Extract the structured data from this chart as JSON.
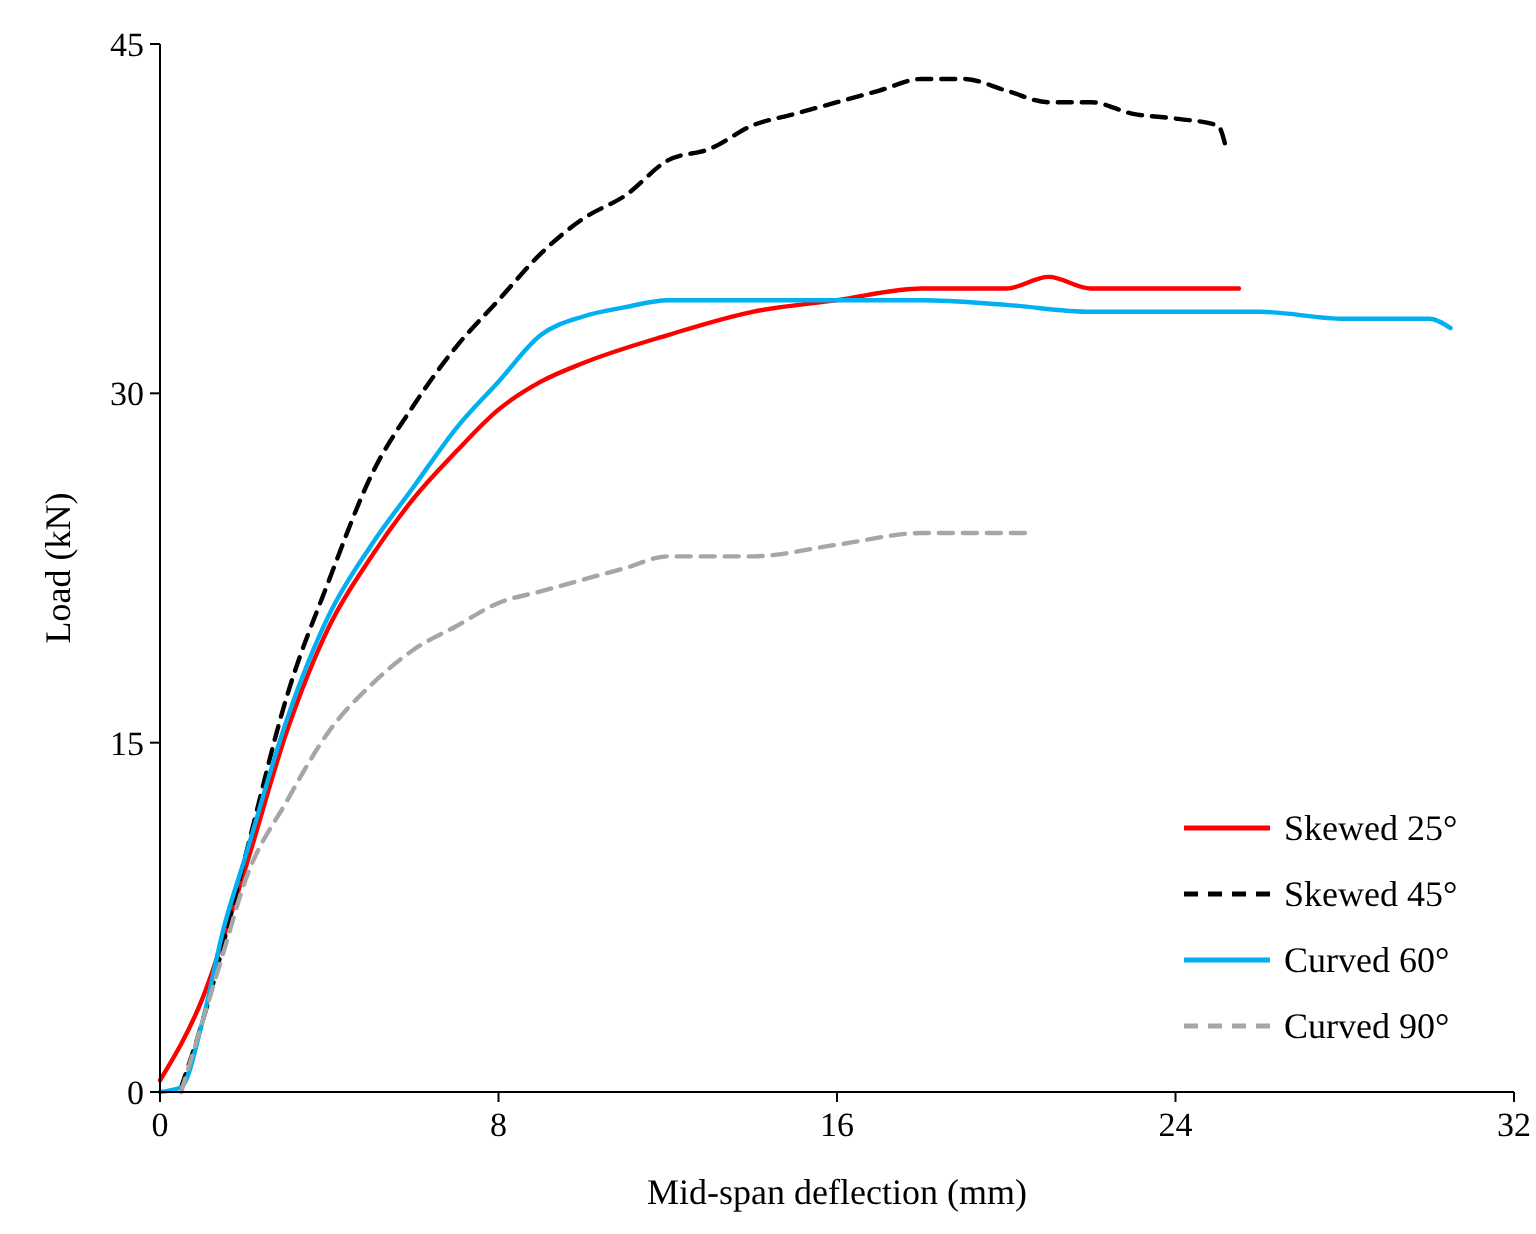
{
  "chart_data": {
    "type": "line",
    "xlabel": "Mid-span deflection (mm)",
    "ylabel": "Load (kN)",
    "xlim": [
      0,
      32
    ],
    "xticks": [
      0,
      8,
      16,
      24,
      32
    ],
    "ylim": [
      0,
      45
    ],
    "yticks": [
      0,
      15,
      30,
      45
    ],
    "grid": false,
    "legend": "bottom right",
    "series": [
      {
        "name": "Skewed 25°",
        "color": "#ff0000",
        "line_style": "solid",
        "x": [
          0,
          1,
          2,
          3,
          4,
          5,
          6,
          7,
          8,
          9,
          10,
          12,
          14,
          16,
          18,
          20,
          21,
          22,
          24,
          25.5
        ],
        "values": [
          0.5,
          4,
          9.5,
          15.5,
          20,
          23,
          25.5,
          27.5,
          29.3,
          30.5,
          31.3,
          32.5,
          33.5,
          34,
          34.5,
          34.5,
          35,
          34.5,
          34.5,
          34.5
        ]
      },
      {
        "name": "Skewed 45°",
        "color": "#000000",
        "line_style": "dashed",
        "x": [
          0.5,
          1,
          2,
          3,
          4,
          5,
          6,
          7,
          8,
          9,
          10,
          11,
          12,
          13,
          14,
          15,
          16,
          17,
          18,
          19,
          20,
          21,
          22,
          23,
          24,
          25,
          25.2
        ],
        "values": [
          0.2,
          3,
          10,
          17,
          22,
          26.5,
          29.5,
          32,
          34,
          36,
          37.5,
          38.5,
          40,
          40.5,
          41.5,
          42,
          42.5,
          43,
          43.5,
          43.5,
          43,
          42.5,
          42.5,
          42,
          41.8,
          41.5,
          40.5
        ]
      },
      {
        "name": "Curved 60°",
        "color": "#00b0f0",
        "line_style": "solid",
        "x": [
          0,
          0.5,
          1,
          1.5,
          2,
          3,
          4,
          5,
          6,
          7,
          8,
          9,
          10,
          11,
          12,
          13,
          14,
          16,
          18,
          20,
          22,
          24,
          26,
          28,
          30,
          30.5
        ],
        "values": [
          0,
          0.2,
          3,
          7,
          10,
          16,
          20.5,
          23.5,
          26,
          28.5,
          30.5,
          32.5,
          33.3,
          33.7,
          34,
          34,
          34,
          34,
          34,
          33.8,
          33.5,
          33.5,
          33.5,
          33.2,
          33.2,
          32.8
        ]
      },
      {
        "name": "Curved 90°",
        "color": "#a6a6a6",
        "line_style": "dashed",
        "x": [
          0.5,
          1,
          1.5,
          2,
          3,
          4,
          5,
          6,
          7,
          8,
          9,
          10,
          11,
          12,
          14,
          16,
          18,
          20,
          20.6
        ],
        "values": [
          0,
          3,
          6,
          9,
          12.5,
          15.5,
          17.5,
          19,
          20,
          21,
          21.5,
          22,
          22.5,
          23,
          23,
          23.5,
          24,
          24,
          24
        ]
      }
    ]
  }
}
